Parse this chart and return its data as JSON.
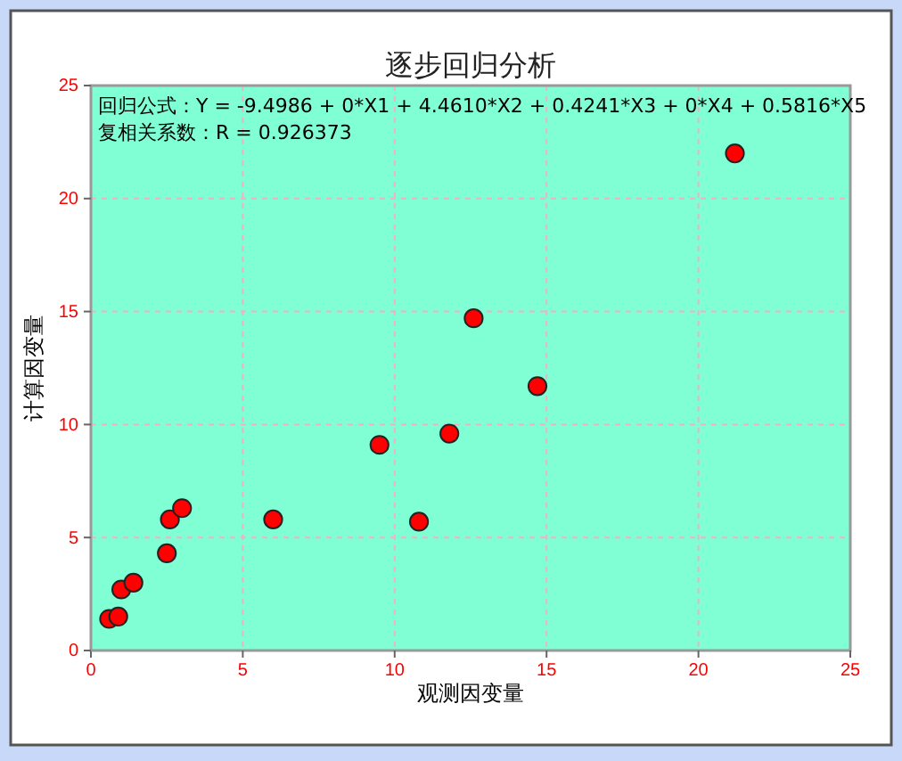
{
  "chart_data": {
    "type": "scatter",
    "title": "逐步回归分析",
    "xlabel": "观测因变量",
    "ylabel": "计算因变量",
    "x": [
      0.6,
      0.9,
      1.0,
      1.4,
      2.5,
      2.6,
      3.0,
      6.0,
      9.5,
      10.8,
      11.8,
      12.6,
      14.7,
      21.2
    ],
    "series": [
      {
        "color": "#ff0000",
        "values": [
          1.4,
          1.5,
          2.7,
          3.0,
          4.3,
          5.8,
          6.3,
          5.8,
          9.1,
          5.7,
          9.6,
          14.7,
          11.7,
          22.0
        ]
      }
    ],
    "xlim": [
      0,
      25
    ],
    "ylim": [
      0,
      25
    ],
    "xticks": [
      0,
      5,
      10,
      15,
      20,
      25
    ],
    "yticks": [
      0,
      5,
      10,
      15,
      20,
      25
    ],
    "grid": true,
    "marker": "circle",
    "annotations": [
      "回归公式：Y = -9.4986 + 0*X1 + 4.4610*X2 + 0.4241*X3 + 0*X4 + 0.5816*X5",
      "复相关系数：R = 0.926373"
    ]
  }
}
